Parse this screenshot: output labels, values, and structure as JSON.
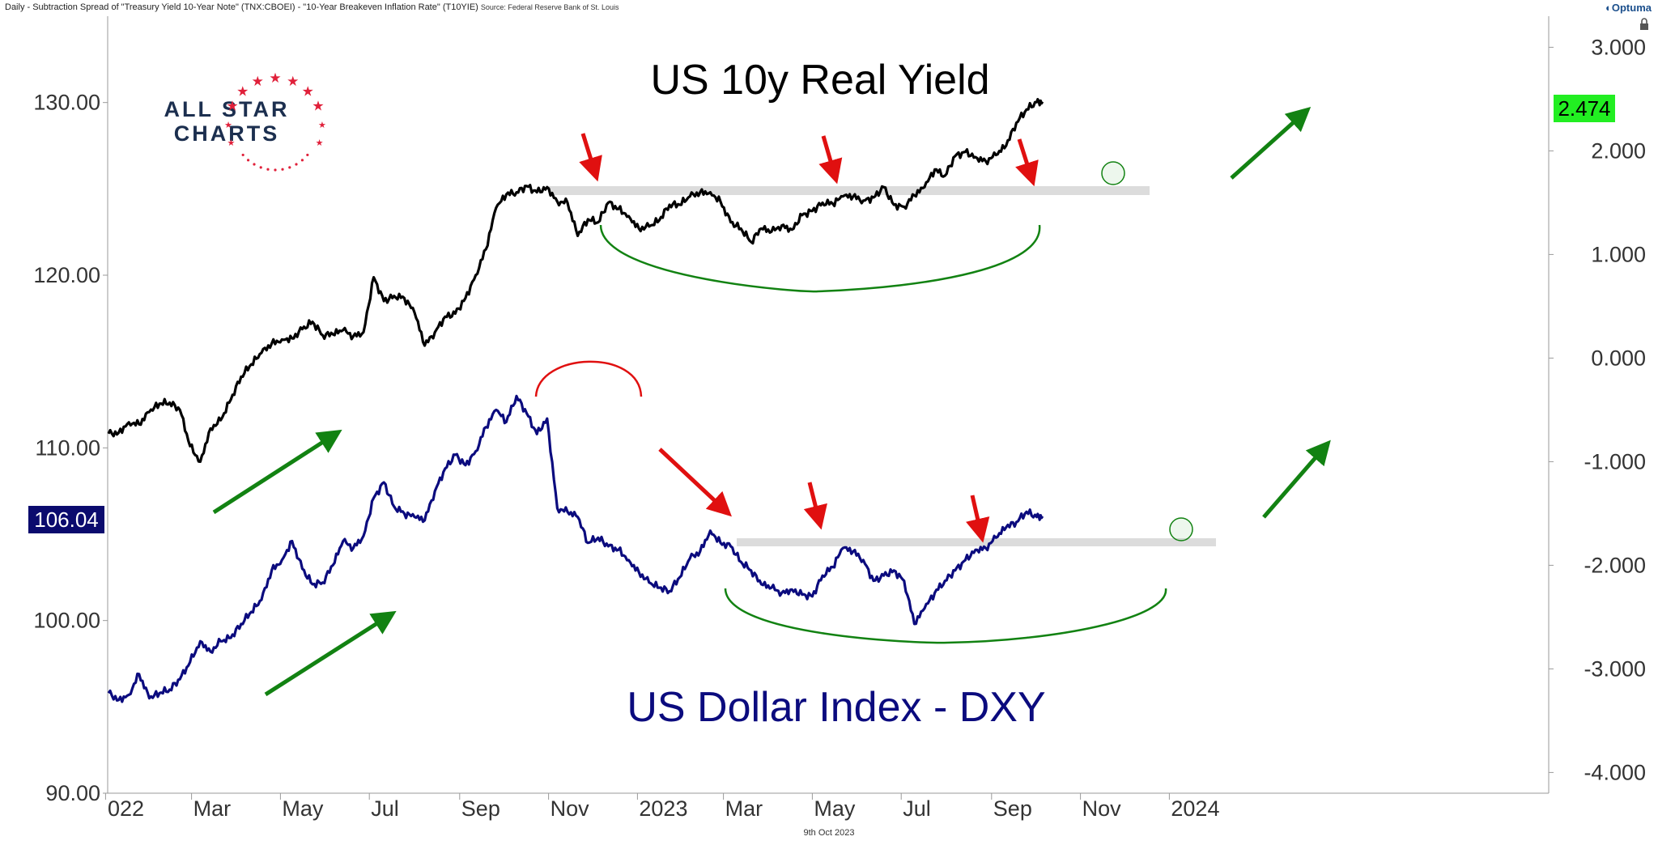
{
  "header": {
    "title": "Daily - Subtraction Spread of \"Treasury Yield 10-Year Note\" (TNX:CBOEI) - \"10-Year Breakeven Inflation Rate\" (T10YIE)",
    "source": "Source: Federal Reserve Bank of St. Louis",
    "brand": "Optuma"
  },
  "footer": {
    "date": "9th Oct 2023"
  },
  "logo": {
    "line1": "ALL STAR",
    "line2": "CHARTS"
  },
  "colors": {
    "real_yield": "#000000",
    "dxy": "#0b0b7e",
    "green": "#128212",
    "red": "#e01010",
    "badge_green": "#22ee22",
    "badge_navy": "#0b0b6e",
    "zone": "#d9d9d9"
  },
  "chart_data": {
    "type": "line",
    "x_axis": {
      "tick_labels": [
        "022",
        "Mar",
        "May",
        "Jul",
        "Sep",
        "Nov",
        "2023",
        "Mar",
        "May",
        "Jul",
        "Sep",
        "Nov",
        "2024"
      ]
    },
    "left_axis": {
      "range": [
        90,
        135
      ],
      "tick_labels": [
        "130.00",
        "120.00",
        "110.00",
        "100.00",
        "90.00"
      ]
    },
    "right_axis": {
      "range": [
        -4.2,
        3.3
      ],
      "tick_labels": [
        "3.000",
        "2.000",
        "1.000",
        "0.000",
        "-1.000",
        "-2.000",
        "-3.000",
        "-4.000"
      ]
    },
    "series": [
      {
        "name": "US 10y Real Yield",
        "axis": "right",
        "last_value_label": "2.474",
        "x": [
          "2022-01-03",
          "2022-01-10",
          "2022-01-17",
          "2022-01-24",
          "2022-01-31",
          "2022-02-07",
          "2022-02-14",
          "2022-02-21",
          "2022-02-28",
          "2022-03-07",
          "2022-03-14",
          "2022-03-21",
          "2022-03-28",
          "2022-04-04",
          "2022-04-11",
          "2022-04-18",
          "2022-04-25",
          "2022-05-02",
          "2022-05-09",
          "2022-05-16",
          "2022-05-23",
          "2022-05-30",
          "2022-06-06",
          "2022-06-13",
          "2022-06-20",
          "2022-06-27",
          "2022-07-04",
          "2022-07-11",
          "2022-07-18",
          "2022-07-25",
          "2022-08-01",
          "2022-08-08",
          "2022-08-15",
          "2022-08-22",
          "2022-08-29",
          "2022-09-05",
          "2022-09-12",
          "2022-09-19",
          "2022-09-26",
          "2022-10-03",
          "2022-10-10",
          "2022-10-17",
          "2022-10-24",
          "2022-10-31",
          "2022-11-07",
          "2022-11-14",
          "2022-11-21",
          "2022-11-28",
          "2022-12-05",
          "2022-12-12",
          "2022-12-19",
          "2022-12-26",
          "2023-01-02",
          "2023-01-09",
          "2023-01-16",
          "2023-01-23",
          "2023-01-30",
          "2023-02-06",
          "2023-02-13",
          "2023-02-20",
          "2023-02-27",
          "2023-03-06",
          "2023-03-13",
          "2023-03-20",
          "2023-03-27",
          "2023-04-03",
          "2023-04-10",
          "2023-04-17",
          "2023-04-24",
          "2023-05-01",
          "2023-05-08",
          "2023-05-15",
          "2023-05-22",
          "2023-05-29",
          "2023-06-05",
          "2023-06-12",
          "2023-06-19",
          "2023-06-26",
          "2023-07-03",
          "2023-07-10",
          "2023-07-17",
          "2023-07-24",
          "2023-07-31",
          "2023-08-07",
          "2023-08-14",
          "2023-08-21",
          "2023-08-28",
          "2023-09-04",
          "2023-09-11",
          "2023-09-18",
          "2023-09-25",
          "2023-10-02",
          "2023-10-06"
        ],
        "values": [
          -0.73,
          -0.72,
          -0.62,
          -0.64,
          -0.52,
          -0.44,
          -0.43,
          -0.5,
          -0.85,
          -1.0,
          -0.68,
          -0.6,
          -0.4,
          -0.18,
          -0.06,
          0.05,
          0.14,
          0.18,
          0.19,
          0.28,
          0.35,
          0.22,
          0.23,
          0.27,
          0.21,
          0.25,
          0.78,
          0.55,
          0.6,
          0.58,
          0.44,
          0.12,
          0.25,
          0.4,
          0.43,
          0.58,
          0.8,
          1.05,
          1.45,
          1.58,
          1.6,
          1.66,
          1.6,
          1.65,
          1.51,
          1.5,
          1.18,
          1.34,
          1.31,
          1.5,
          1.44,
          1.37,
          1.25,
          1.27,
          1.33,
          1.48,
          1.48,
          1.56,
          1.6,
          1.6,
          1.51,
          1.31,
          1.25,
          1.12,
          1.25,
          1.22,
          1.28,
          1.24,
          1.38,
          1.42,
          1.5,
          1.49,
          1.56,
          1.56,
          1.52,
          1.55,
          1.65,
          1.48,
          1.46,
          1.57,
          1.65,
          1.82,
          1.76,
          1.95,
          1.99,
          1.94,
          1.9,
          1.96,
          2.05,
          2.27,
          2.4,
          2.47,
          2.474
        ]
      },
      {
        "name": "US Dollar Index - DXY",
        "axis": "left",
        "last_value_label": "106.04",
        "x": [
          "2022-01-03",
          "2022-01-10",
          "2022-01-17",
          "2022-01-24",
          "2022-01-31",
          "2022-02-07",
          "2022-02-14",
          "2022-02-21",
          "2022-02-28",
          "2022-03-07",
          "2022-03-14",
          "2022-03-21",
          "2022-03-28",
          "2022-04-04",
          "2022-04-11",
          "2022-04-18",
          "2022-04-25",
          "2022-05-02",
          "2022-05-09",
          "2022-05-16",
          "2022-05-23",
          "2022-05-30",
          "2022-06-06",
          "2022-06-13",
          "2022-06-20",
          "2022-06-27",
          "2022-07-04",
          "2022-07-11",
          "2022-07-18",
          "2022-07-25",
          "2022-08-01",
          "2022-08-08",
          "2022-08-15",
          "2022-08-22",
          "2022-08-29",
          "2022-09-05",
          "2022-09-12",
          "2022-09-19",
          "2022-09-26",
          "2022-10-03",
          "2022-10-10",
          "2022-10-17",
          "2022-10-24",
          "2022-10-31",
          "2022-11-07",
          "2022-11-14",
          "2022-11-21",
          "2022-11-28",
          "2022-12-05",
          "2022-12-12",
          "2022-12-19",
          "2022-12-26",
          "2023-01-02",
          "2023-01-09",
          "2023-01-16",
          "2023-01-23",
          "2023-01-30",
          "2023-02-06",
          "2023-02-13",
          "2023-02-20",
          "2023-02-27",
          "2023-03-06",
          "2023-03-13",
          "2023-03-20",
          "2023-03-27",
          "2023-04-03",
          "2023-04-10",
          "2023-04-17",
          "2023-04-24",
          "2023-05-01",
          "2023-05-08",
          "2023-05-15",
          "2023-05-22",
          "2023-05-29",
          "2023-06-05",
          "2023-06-12",
          "2023-06-19",
          "2023-06-26",
          "2023-07-03",
          "2023-07-10",
          "2023-07-17",
          "2023-07-24",
          "2023-07-31",
          "2023-08-07",
          "2023-08-14",
          "2023-08-21",
          "2023-08-28",
          "2023-09-04",
          "2023-09-11",
          "2023-09-18",
          "2023-09-25",
          "2023-10-02",
          "2023-10-06"
        ],
        "values": [
          95.8,
          95.4,
          95.7,
          96.9,
          95.5,
          95.8,
          96.0,
          96.6,
          97.6,
          98.8,
          98.2,
          98.8,
          99.0,
          99.8,
          100.5,
          101.2,
          102.9,
          103.5,
          104.6,
          103.0,
          102.1,
          102.2,
          103.2,
          104.6,
          104.2,
          104.9,
          107.1,
          108.0,
          106.6,
          106.2,
          106.0,
          105.8,
          107.5,
          108.8,
          109.6,
          109.0,
          109.8,
          111.2,
          112.2,
          111.5,
          113.0,
          112.0,
          110.8,
          111.7,
          106.5,
          106.3,
          106.0,
          104.5,
          104.8,
          104.3,
          104.1,
          103.5,
          102.8,
          102.2,
          101.9,
          101.7,
          102.5,
          103.6,
          104.0,
          105.2,
          104.5,
          104.3,
          103.4,
          102.9,
          102.1,
          101.9,
          101.6,
          101.8,
          101.5,
          101.4,
          102.6,
          103.1,
          104.2,
          104.0,
          103.5,
          102.3,
          102.6,
          102.9,
          102.3,
          99.8,
          100.7,
          101.6,
          102.3,
          102.9,
          103.5,
          104.1,
          104.2,
          104.8,
          105.4,
          105.7,
          106.3,
          106.0,
          106.04
        ]
      }
    ],
    "annotations": [
      "US 10y Real Yield",
      "US Dollar Index - DXY"
    ],
    "grid": false
  }
}
